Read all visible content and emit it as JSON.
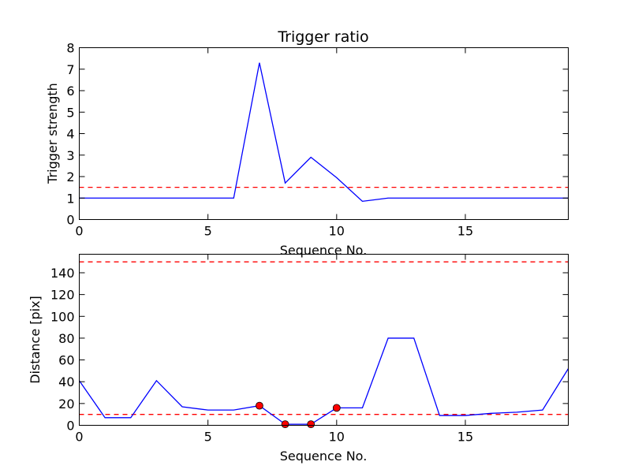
{
  "chart_data": [
    {
      "type": "line",
      "title": "Trigger ratio",
      "xlabel": "Sequence No.",
      "ylabel": "Trigger strength",
      "xlim": [
        0,
        19
      ],
      "ylim": [
        0,
        8
      ],
      "xticks": [
        0,
        5,
        10,
        15
      ],
      "yticks": [
        0,
        1,
        2,
        3,
        4,
        5,
        6,
        7,
        8
      ],
      "grid": false,
      "series": [
        {
          "color": "#0000ff",
          "x": [
            0,
            1,
            2,
            3,
            4,
            5,
            6,
            7,
            8,
            9,
            10,
            11,
            12,
            13,
            14,
            15,
            16,
            17,
            18,
            19
          ],
          "y": [
            1.0,
            1.0,
            1.0,
            1.0,
            1.0,
            1.0,
            1.0,
            7.3,
            1.7,
            2.9,
            1.95,
            0.85,
            1.0,
            1.0,
            1.0,
            1.0,
            1.0,
            1.0,
            1.0,
            1.0
          ]
        }
      ],
      "thresholds": [
        {
          "y": 1.5,
          "color": "#ff0000"
        }
      ]
    },
    {
      "type": "line",
      "title": "",
      "xlabel": "Sequence No.",
      "ylabel": "Distance [pix]",
      "xlim": [
        0,
        19
      ],
      "ylim": [
        0,
        157
      ],
      "xticks": [
        0,
        5,
        10,
        15
      ],
      "yticks": [
        0,
        20,
        40,
        60,
        80,
        100,
        120,
        140
      ],
      "grid": false,
      "series": [
        {
          "color": "#0000ff",
          "x": [
            0,
            1,
            2,
            3,
            4,
            5,
            6,
            7,
            8,
            9,
            10,
            11,
            12,
            13,
            14,
            15,
            16,
            17,
            18,
            19
          ],
          "y": [
            41,
            7,
            7,
            41,
            17,
            14,
            14,
            18,
            1,
            1,
            16,
            16,
            80,
            80,
            9,
            9,
            11,
            12,
            14,
            52
          ]
        }
      ],
      "markers": {
        "color": "#ff0000",
        "x": [
          7,
          8,
          9,
          10
        ],
        "y": [
          18,
          1,
          1,
          16
        ]
      },
      "thresholds": [
        {
          "y": 150,
          "color": "#ff0000"
        },
        {
          "y": 10,
          "color": "#ff0000"
        }
      ]
    }
  ]
}
